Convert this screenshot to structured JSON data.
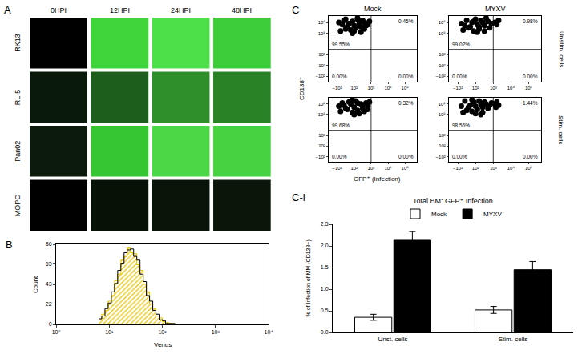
{
  "chart_data": [
    {
      "type": "image_grid",
      "panel": "A",
      "columns": [
        "0HPI",
        "12HPI",
        "24HPI",
        "48HPI"
      ],
      "rows": [
        "RK13",
        "RL-5",
        "Pan02",
        "MOPC"
      ],
      "colors": [
        [
          "#000000",
          "#3fd43a",
          "#4ee048",
          "#3ccd38"
        ],
        [
          "#0a1a0a",
          "#1e5e1c",
          "#2f8f2b",
          "#2a8226"
        ],
        [
          "#0b1a0b",
          "#36c632",
          "#4ad845",
          "#45d340"
        ],
        [
          "#000000",
          "#071207",
          "#081408",
          "#0a160a"
        ]
      ]
    },
    {
      "type": "histogram",
      "panel": "B",
      "x_label": "Venus",
      "y_label": "Count",
      "log": "x",
      "bins": [
        6.31,
        7.24,
        8.32,
        9.55,
        10.96,
        12.59,
        14.45,
        16.6,
        19.05,
        21.88,
        25.12,
        28.84,
        33.11,
        38.02,
        43.65,
        50.12,
        57.54,
        66.07,
        75.86,
        87.1,
        100,
        114.8,
        131.8,
        151.4,
        173.8
      ],
      "series": [
        {
          "color": "#e8c400",
          "values": [
            5,
            11,
            15,
            25,
            31,
            47,
            54,
            69,
            73,
            82,
            77,
            76,
            64,
            58,
            43,
            35,
            22,
            17,
            9,
            7,
            3,
            2,
            1,
            0
          ]
        },
        {
          "color": "#000000",
          "values": [
            6,
            9,
            17,
            23,
            35,
            44,
            58,
            65,
            77,
            80,
            81,
            73,
            69,
            54,
            46,
            31,
            25,
            15,
            11,
            5,
            4,
            1,
            1,
            1
          ]
        }
      ],
      "xlim": [
        1,
        10000
      ],
      "xticks": [
        {
          "value": 1,
          "label": "10⁰"
        },
        {
          "value": 10,
          "label": "10¹"
        },
        {
          "value": 100,
          "label": "10²"
        },
        {
          "value": 1000,
          "label": "10³"
        },
        {
          "value": 10000,
          "label": "10⁴"
        }
      ],
      "ylim": [
        0,
        86
      ],
      "yticks": [
        0,
        22,
        43,
        65,
        86
      ]
    },
    {
      "type": "scatter",
      "panel": "C",
      "x_label": "GFP⁺ (Infection)",
      "y_label": "CD138⁺",
      "columns": [
        "Mock",
        "MYXV"
      ],
      "rows": [
        "Unstim. cells",
        "Stim. cells"
      ],
      "color": "#000000",
      "xlim": [
        0.5,
        5.7
      ],
      "xticks": [
        {
          "value": 1,
          "label": "−10²"
        },
        {
          "value": 2,
          "label": "10²"
        },
        {
          "value": 3,
          "label": "10³"
        },
        {
          "value": 4,
          "label": "10⁴"
        },
        {
          "value": 5,
          "label": "10⁵"
        }
      ],
      "ylim": [
        0.5,
        6.6
      ],
      "yticks": [
        {
          "value": 1,
          "label": "−10²"
        },
        {
          "value": 2,
          "label": "10²"
        },
        {
          "value": 3,
          "label": "10³"
        },
        {
          "value": 5,
          "label": "10⁵"
        },
        {
          "value": 6,
          "label": "10⁶"
        }
      ],
      "gate": {
        "x": 3,
        "y": 3.5
      },
      "plots": [
        [
          {
            "x": [
              1.2,
              1.5,
              1.8,
              2.1,
              2.4,
              2.7,
              1.3,
              1.7,
              2.0,
              2.3,
              2.6,
              2.9,
              1.4,
              1.9,
              2.2,
              2.5,
              1.6,
              2.0,
              2.4,
              2.8,
              1.1,
              2.2,
              1.5,
              2.6,
              1.9
            ],
            "y": [
              5.2,
              5.4,
              5.3,
              5.5,
              5.6,
              5.7,
              5.8,
              5.9,
              5.7,
              5.9,
              6.0,
              6.1,
              6.2,
              6.1,
              6.3,
              6.2,
              5.6,
              5.2,
              5.1,
              5.8,
              6.0,
              6.4,
              6.3,
              5.4,
              5.0
            ],
            "quadrants": {
              "upper_left": "99.55%",
              "upper_right": "0.45%",
              "lower_left": "0.00%",
              "lower_right": "0.00%"
            }
          },
          {
            "x": [
              1.3,
              1.6,
              1.9,
              2.2,
              2.5,
              2.8,
              1.2,
              1.8,
              2.1,
              2.4,
              2.7,
              2.9,
              1.5,
              2.0,
              2.3,
              2.6,
              1.7,
              2.1,
              2.5,
              1.4,
              2.2,
              1.9,
              3.1,
              3.2,
              3.3
            ],
            "y": [
              5.3,
              5.5,
              5.2,
              5.6,
              5.7,
              5.5,
              5.9,
              6.0,
              5.8,
              6.0,
              6.1,
              5.9,
              6.2,
              6.3,
              6.2,
              6.4,
              5.6,
              5.1,
              5.2,
              5.7,
              5.4,
              6.1,
              6.0,
              5.8,
              6.2
            ],
            "quadrants": {
              "upper_left": "99.02%",
              "upper_right": "0.98%",
              "lower_left": "0.00%",
              "lower_right": "0.00%"
            }
          }
        ],
        [
          {
            "x": [
              1.2,
              1.6,
              1.9,
              2.2,
              2.5,
              2.8,
              1.4,
              1.8,
              2.0,
              2.4,
              2.7,
              2.9,
              1.3,
              1.7,
              2.1,
              2.6,
              1.5,
              2.3,
              2.0,
              2.5,
              1.1,
              2.8,
              1.9,
              2.2
            ],
            "y": [
              5.3,
              5.5,
              5.2,
              5.4,
              5.6,
              5.8,
              5.9,
              6.0,
              5.7,
              6.0,
              6.1,
              6.2,
              6.1,
              6.2,
              6.3,
              5.3,
              5.6,
              5.1,
              5.0,
              5.9,
              5.8,
              5.5,
              6.4,
              6.1
            ],
            "quadrants": {
              "upper_left": "99.68%",
              "upper_right": "0.32%",
              "lower_left": "0.00%",
              "lower_right": "0.00%"
            }
          },
          {
            "x": [
              1.3,
              1.5,
              1.8,
              2.1,
              2.4,
              2.7,
              1.2,
              1.7,
              2.0,
              2.3,
              2.6,
              2.9,
              1.4,
              1.9,
              2.2,
              2.5,
              1.6,
              2.0,
              2.4,
              2.8,
              1.8,
              2.3,
              3.1,
              3.2,
              3.3,
              3.15
            ],
            "y": [
              5.2,
              5.4,
              5.3,
              5.5,
              5.7,
              5.6,
              5.8,
              5.9,
              5.8,
              6.0,
              6.0,
              6.1,
              6.3,
              6.2,
              6.3,
              6.2,
              5.7,
              5.1,
              5.2,
              5.9,
              6.4,
              5.0,
              6.0,
              6.2,
              5.9,
              5.7
            ],
            "quadrants": {
              "upper_left": "98.56%",
              "upper_right": "1.44%",
              "lower_left": "0.00%",
              "lower_right": "0.00%"
            }
          }
        ]
      ]
    },
    {
      "type": "bar",
      "panel": "C-i",
      "title": "Total BM: GFP⁺ Infection",
      "y_label": "% of Infection of MM (CD138+)",
      "categories": [
        "Unst. cells",
        "Stim. cells"
      ],
      "series": [
        {
          "name": "Mock",
          "color": "#ffffff",
          "values": [
            0.35,
            0.52
          ],
          "errors": [
            0.07,
            0.08
          ]
        },
        {
          "name": "MYXV",
          "color": "#000000",
          "values": [
            2.13,
            1.45
          ],
          "errors": [
            0.2,
            0.19
          ]
        }
      ],
      "ylim": [
        0,
        2.5
      ],
      "yticks": [
        {
          "value": 0,
          "label": "0.0"
        },
        0.5,
        {
          "value": 1,
          "label": "1.0"
        },
        1.5,
        {
          "value": 2,
          "label": "2.0"
        },
        2.5
      ],
      "legend": "top"
    }
  ]
}
